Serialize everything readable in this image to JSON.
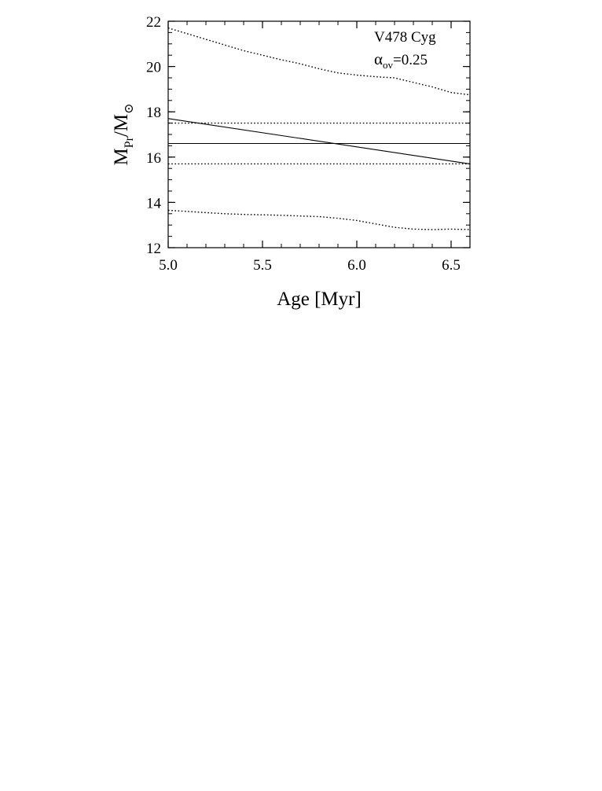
{
  "chart_data": {
    "type": "line",
    "xlabel": "Age [Myr]",
    "ylabel": {
      "base": "M",
      "sub": "Pr",
      "sep": "/M",
      "sun": "⊙"
    },
    "xlim": [
      5.0,
      6.6
    ],
    "ylim": [
      12,
      22
    ],
    "xticks": [
      5.0,
      5.5,
      6.0,
      6.5
    ],
    "xtick_labels": [
      "5.0",
      "5.5",
      "6.0",
      "6.5"
    ],
    "yticks": [
      12,
      14,
      16,
      18,
      20,
      22
    ],
    "ytick_labels": [
      "12",
      "14",
      "16",
      "18",
      "20",
      "22"
    ],
    "x_minor_step": 0.1,
    "y_minor_step": 0.5,
    "grid": false,
    "annotations": {
      "star": "V478 Cyg",
      "alpha_symbol": "α",
      "alpha_sub": "ov",
      "alpha_value": "=0.25"
    },
    "series": [
      {
        "style": "solid",
        "x": [
          5.0,
          6.6
        ],
        "y": [
          17.7,
          15.7
        ]
      },
      {
        "style": "dotted",
        "x": [
          5.0,
          5.1,
          5.2,
          5.3,
          5.4,
          5.5,
          5.6,
          5.7,
          5.8,
          5.9,
          6.0,
          6.1,
          6.2,
          6.3,
          6.4,
          6.5,
          6.6
        ],
        "y": [
          21.7,
          21.45,
          21.2,
          20.95,
          20.7,
          20.5,
          20.3,
          20.12,
          19.9,
          19.72,
          19.62,
          19.55,
          19.5,
          19.3,
          19.1,
          18.85,
          18.75
        ]
      },
      {
        "style": "dotted",
        "x": [
          5.0,
          5.1,
          5.2,
          5.3,
          5.4,
          5.5,
          5.6,
          5.7,
          5.8,
          5.9,
          6.0,
          6.1,
          6.2,
          6.3,
          6.4,
          6.5,
          6.6
        ],
        "y": [
          13.65,
          13.6,
          13.55,
          13.5,
          13.47,
          13.45,
          13.43,
          13.4,
          13.37,
          13.3,
          13.2,
          13.05,
          12.9,
          12.82,
          12.8,
          12.82,
          12.8
        ]
      },
      {
        "style": "solid",
        "x": [
          5.0,
          6.6
        ],
        "y": [
          16.6,
          16.6
        ]
      },
      {
        "style": "dotted",
        "x": [
          5.0,
          6.6
        ],
        "y": [
          17.5,
          17.5
        ]
      },
      {
        "style": "dotted",
        "x": [
          5.0,
          6.6
        ],
        "y": [
          15.7,
          15.7
        ]
      }
    ]
  }
}
